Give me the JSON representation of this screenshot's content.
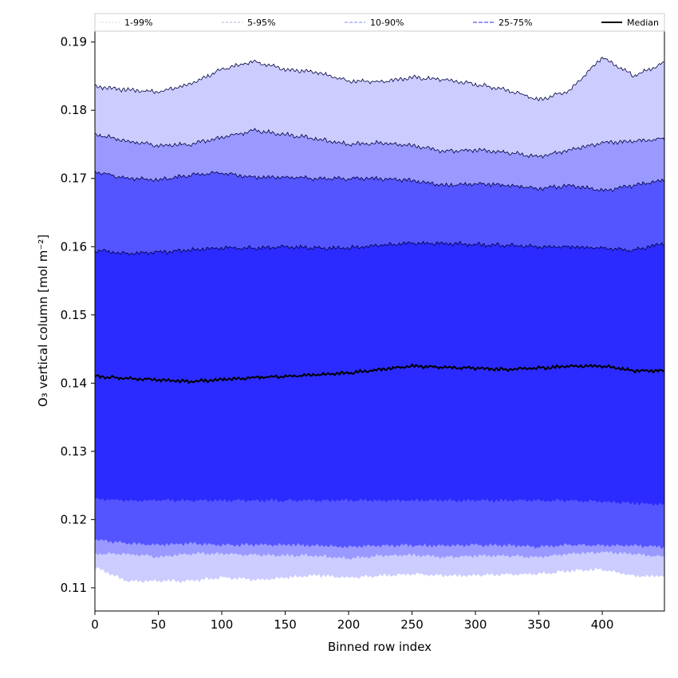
{
  "chart_data": {
    "type": "area",
    "xlabel": "Binned row index",
    "ylabel": "O₃ vertical column [mol m⁻²]",
    "xlim": [
      0,
      449
    ],
    "ylim": [
      0.1066,
      0.1916
    ],
    "xticks": [
      "0",
      "50",
      "100",
      "150",
      "200",
      "250",
      "300",
      "350",
      "400"
    ],
    "yticks": [
      "0.11",
      "0.12",
      "0.13",
      "0.14",
      "0.15",
      "0.16",
      "0.17",
      "0.18",
      "0.19"
    ],
    "grid": false,
    "legend_position": "top",
    "colors": {
      "band_1_99": "#ccccff",
      "band_5_95": "#9999ff",
      "band_10_90": "#5555ff",
      "band_25_75": "#2b2bff",
      "median": "#000000",
      "line_1_99": "#cccccc",
      "line_5_95": "#9999cc",
      "line_10_90": "#8080ff",
      "line_25_75": "#5555ee"
    },
    "x": [
      0,
      25,
      50,
      75,
      100,
      125,
      150,
      175,
      200,
      225,
      250,
      275,
      300,
      325,
      350,
      375,
      400,
      425,
      449
    ],
    "series": [
      {
        "name": "1-99%",
        "key": "band_1_99",
        "upper": [
          0.1835,
          0.183,
          0.1827,
          0.1838,
          0.186,
          0.1872,
          0.186,
          0.1855,
          0.1843,
          0.1842,
          0.1848,
          0.1845,
          0.1838,
          0.183,
          0.1815,
          0.183,
          0.1878,
          0.185,
          0.187
        ],
        "lower": [
          0.113,
          0.111,
          0.111,
          0.111,
          0.1115,
          0.1112,
          0.1115,
          0.1118,
          0.1115,
          0.1118,
          0.112,
          0.1118,
          0.1118,
          0.112,
          0.112,
          0.1125,
          0.1127,
          0.1117,
          0.1117
        ]
      },
      {
        "name": "5-95%",
        "key": "band_5_95",
        "upper": [
          0.1765,
          0.1755,
          0.1748,
          0.175,
          0.176,
          0.177,
          0.1765,
          0.1758,
          0.175,
          0.1752,
          0.1748,
          0.174,
          0.1742,
          0.1738,
          0.1732,
          0.1742,
          0.1752,
          0.1755,
          0.1758
        ],
        "lower": [
          0.115,
          0.115,
          0.1145,
          0.115,
          0.115,
          0.1148,
          0.1148,
          0.1147,
          0.1143,
          0.1147,
          0.1148,
          0.1145,
          0.1147,
          0.1147,
          0.1145,
          0.115,
          0.1152,
          0.115,
          0.1145
        ]
      },
      {
        "name": "10-90%",
        "key": "band_10_90",
        "upper": [
          0.171,
          0.17,
          0.1698,
          0.1705,
          0.1708,
          0.1702,
          0.1702,
          0.17,
          0.17,
          0.17,
          0.1697,
          0.169,
          0.1692,
          0.169,
          0.1685,
          0.169,
          0.1682,
          0.169,
          0.1697
        ],
        "lower": [
          0.117,
          0.1165,
          0.1163,
          0.1165,
          0.1163,
          0.1163,
          0.1163,
          0.1162,
          0.116,
          0.1162,
          0.1162,
          0.1162,
          0.1163,
          0.1162,
          0.116,
          0.1163,
          0.1162,
          0.1162,
          0.116
        ]
      },
      {
        "name": "25-75%",
        "key": "band_25_75",
        "upper": [
          0.1595,
          0.159,
          0.1592,
          0.1595,
          0.1598,
          0.1598,
          0.16,
          0.1598,
          0.1598,
          0.1602,
          0.1605,
          0.1605,
          0.1603,
          0.1602,
          0.16,
          0.16,
          0.1598,
          0.1595,
          0.1605
        ],
        "lower": [
          0.123,
          0.1228,
          0.1228,
          0.1228,
          0.1228,
          0.1228,
          0.1228,
          0.1228,
          0.1228,
          0.1228,
          0.1228,
          0.1228,
          0.1228,
          0.1228,
          0.1228,
          0.1228,
          0.1226,
          0.1224,
          0.1222
        ]
      },
      {
        "name": "Median",
        "key": "median",
        "values": [
          0.141,
          0.1407,
          0.1405,
          0.1402,
          0.1405,
          0.1408,
          0.141,
          0.1412,
          0.1415,
          0.142,
          0.1425,
          0.1423,
          0.1422,
          0.142,
          0.1422,
          0.1425,
          0.1425,
          0.1418,
          0.1418
        ]
      }
    ],
    "legend": [
      "1-99%",
      "5-95%",
      "10-90%",
      "25-75%",
      "Median"
    ]
  }
}
